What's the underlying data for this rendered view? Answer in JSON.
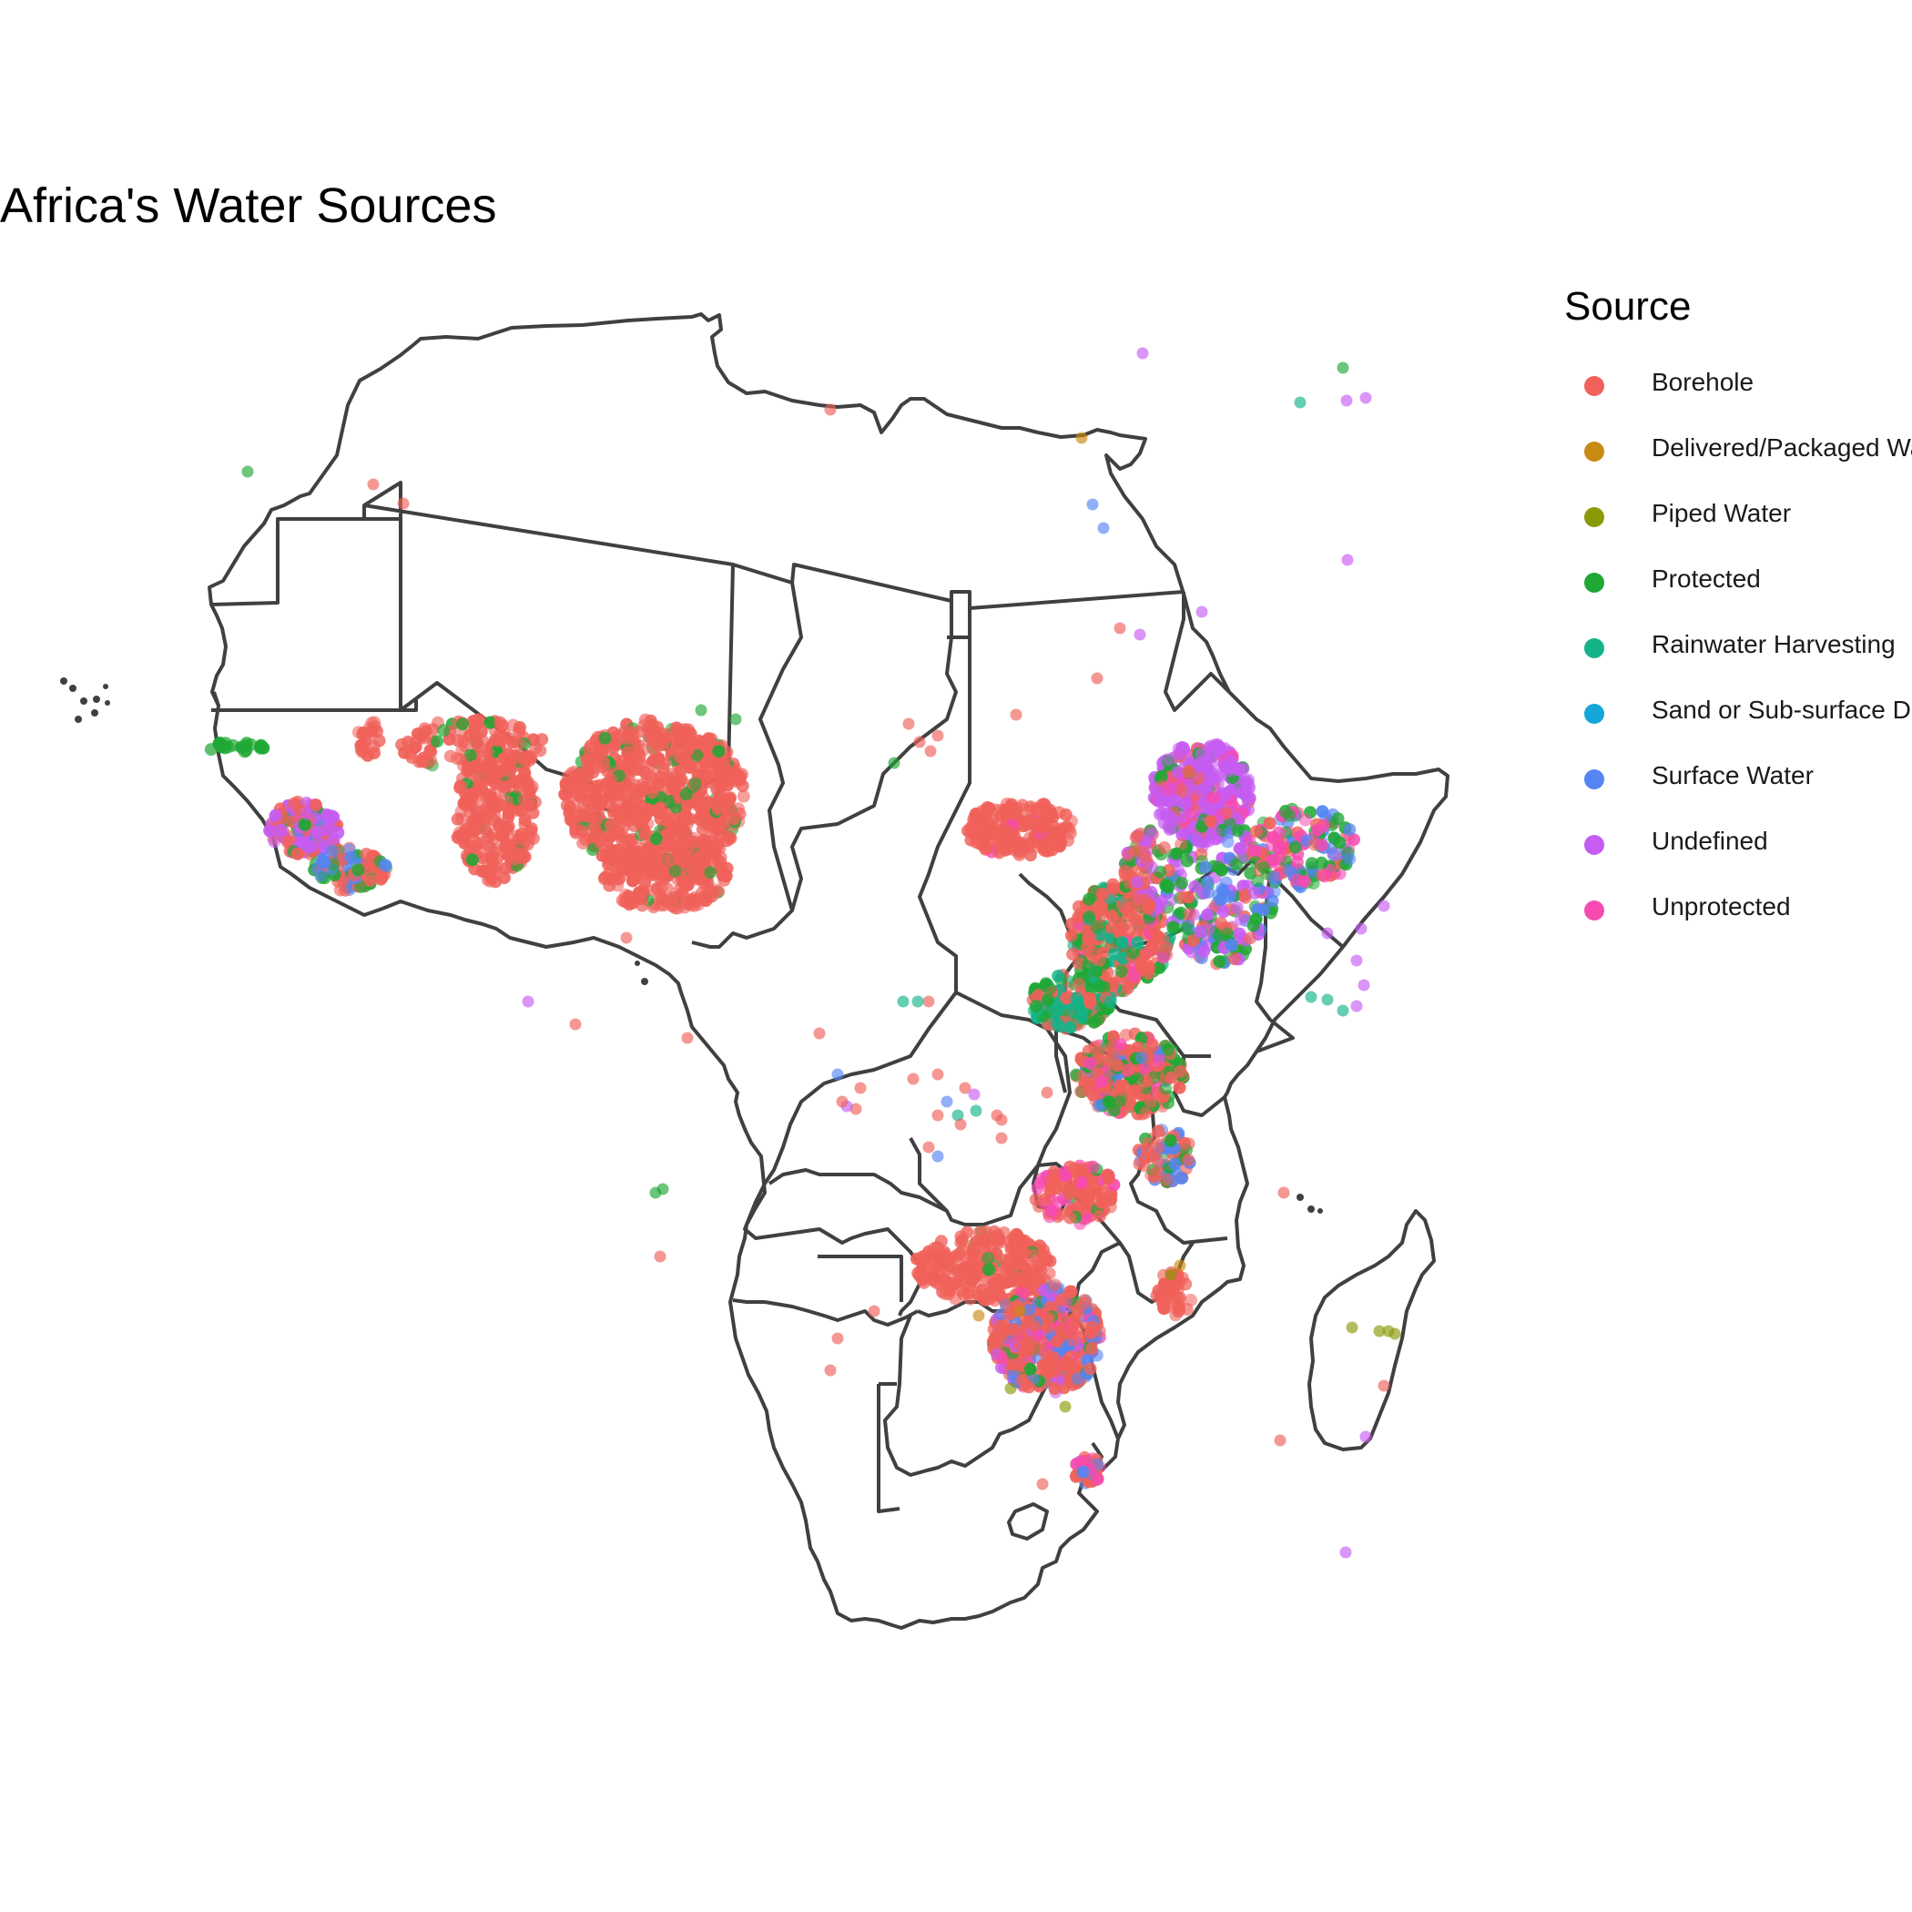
{
  "chart_data": {
    "type": "scatter",
    "title": "Africa's Water Sources",
    "legend": {
      "title": "Source",
      "position": "right",
      "items": [
        {
          "label": "Borehole",
          "color": "#F0615A"
        },
        {
          "label": "Delivered/Packaged Water",
          "color": "#C98A12"
        },
        {
          "label": "Piped Water",
          "color": "#8A9A06"
        },
        {
          "label": "Protected",
          "color": "#1FA834"
        },
        {
          "label": "Rainwater Harvesting",
          "color": "#14B38A"
        },
        {
          "label": "Sand or Sub-surface Dam",
          "color": "#14A6D8"
        },
        {
          "label": "Surface Water",
          "color": "#5585F2"
        },
        {
          "label": "Undefined",
          "color": "#C65CF2"
        },
        {
          "label": "Unprotected",
          "color": "#F64AB1"
        }
      ]
    },
    "basemap": "Africa country borders",
    "grid": false,
    "axes_visible": false
  }
}
